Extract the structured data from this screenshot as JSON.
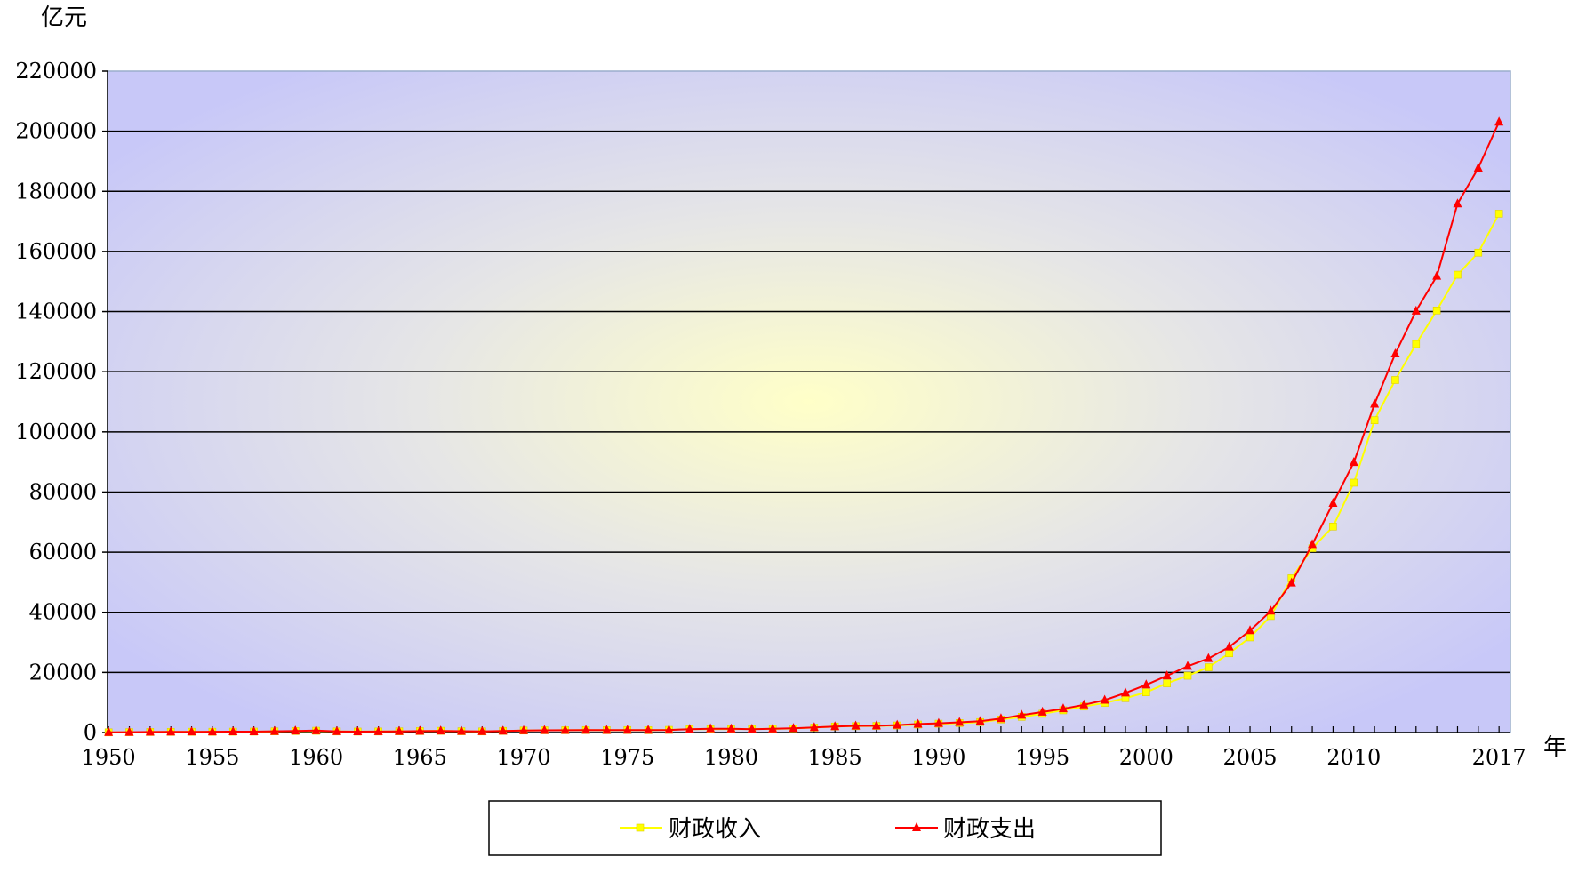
{
  "chart_data": {
    "type": "line",
    "ylabel": "亿元",
    "xlabel": "年",
    "ylim": [
      0,
      220000
    ],
    "yticks": [
      "0",
      "20000",
      "40000",
      "60000",
      "80000",
      "100000",
      "120000",
      "140000",
      "160000",
      "180000",
      "200000",
      "220000"
    ],
    "xtick_labels": [
      "1950",
      "1955",
      "1960",
      "1965",
      "1970",
      "1975",
      "1980",
      "1985",
      "1990",
      "1995",
      "2000",
      "2005",
      "2010",
      "2017"
    ],
    "xtick_years": [
      1950,
      1955,
      1960,
      1965,
      1970,
      1975,
      1980,
      1985,
      1990,
      1995,
      2000,
      2005,
      2010,
      2017
    ],
    "grid": true,
    "legend_position": "bottom",
    "colors": {
      "revenue": "#ffff00",
      "expenditure": "#ff0000",
      "plot_bg_edge": "#c8c8f8",
      "plot_bg_center": "#ffffd0"
    },
    "x": [
      1950,
      1951,
      1952,
      1953,
      1954,
      1955,
      1956,
      1957,
      1958,
      1959,
      1960,
      1961,
      1962,
      1963,
      1964,
      1965,
      1966,
      1967,
      1968,
      1969,
      1970,
      1971,
      1972,
      1973,
      1974,
      1975,
      1976,
      1977,
      1978,
      1979,
      1980,
      1981,
      1982,
      1983,
      1984,
      1985,
      1986,
      1987,
      1988,
      1989,
      1990,
      1991,
      1992,
      1993,
      1994,
      1995,
      1996,
      1997,
      1998,
      1999,
      2000,
      2001,
      2002,
      2003,
      2004,
      2005,
      2006,
      2007,
      2008,
      2009,
      2010,
      2011,
      2012,
      2013,
      2014,
      2015,
      2016,
      2017
    ],
    "series": [
      {
        "name": "财政收入",
        "color": "#ffff00",
        "marker": "square",
        "values": [
          62,
          125,
          174,
          213,
          245,
          249,
          280,
          303,
          379,
          487,
          572,
          356,
          314,
          342,
          400,
          473,
          558,
          419,
          361,
          527,
          663,
          744,
          767,
          809,
          783,
          816,
          776,
          874,
          1132,
          1146,
          1160,
          1176,
          1212,
          1367,
          1643,
          2005,
          2122,
          2199,
          2357,
          2665,
          2937,
          3149,
          3483,
          4349,
          5218,
          6242,
          7408,
          8651,
          9876,
          11444,
          13395,
          16386,
          18904,
          21715,
          26396,
          31649,
          38760,
          51322,
          61330,
          68518,
          83102,
          103874,
          117254,
          129210,
          140370,
          152269,
          159605,
          172567
        ]
      },
      {
        "name": "财政支出",
        "color": "#ff0000",
        "marker": "triangle",
        "values": [
          68,
          122,
          173,
          220,
          244,
          262,
          298,
          296,
          400,
          544,
          643,
          367,
          305,
          340,
          399,
          466,
          541,
          442,
          358,
          526,
          649,
          732,
          766,
          809,
          791,
          821,
          806,
          843,
          1122,
          1282,
          1229,
          1138,
          1230,
          1410,
          1701,
          2004,
          2205,
          2262,
          2491,
          2824,
          3084,
          3387,
          3742,
          4642,
          5793,
          6824,
          7938,
          9234,
          10798,
          13188,
          15887,
          18903,
          22053,
          24650,
          28487,
          33930,
          40423,
          49781,
          62593,
          76300,
          89874,
          109248,
          125953,
          140212,
          151786,
          175878,
          187755,
          203085
        ]
      }
    ]
  }
}
